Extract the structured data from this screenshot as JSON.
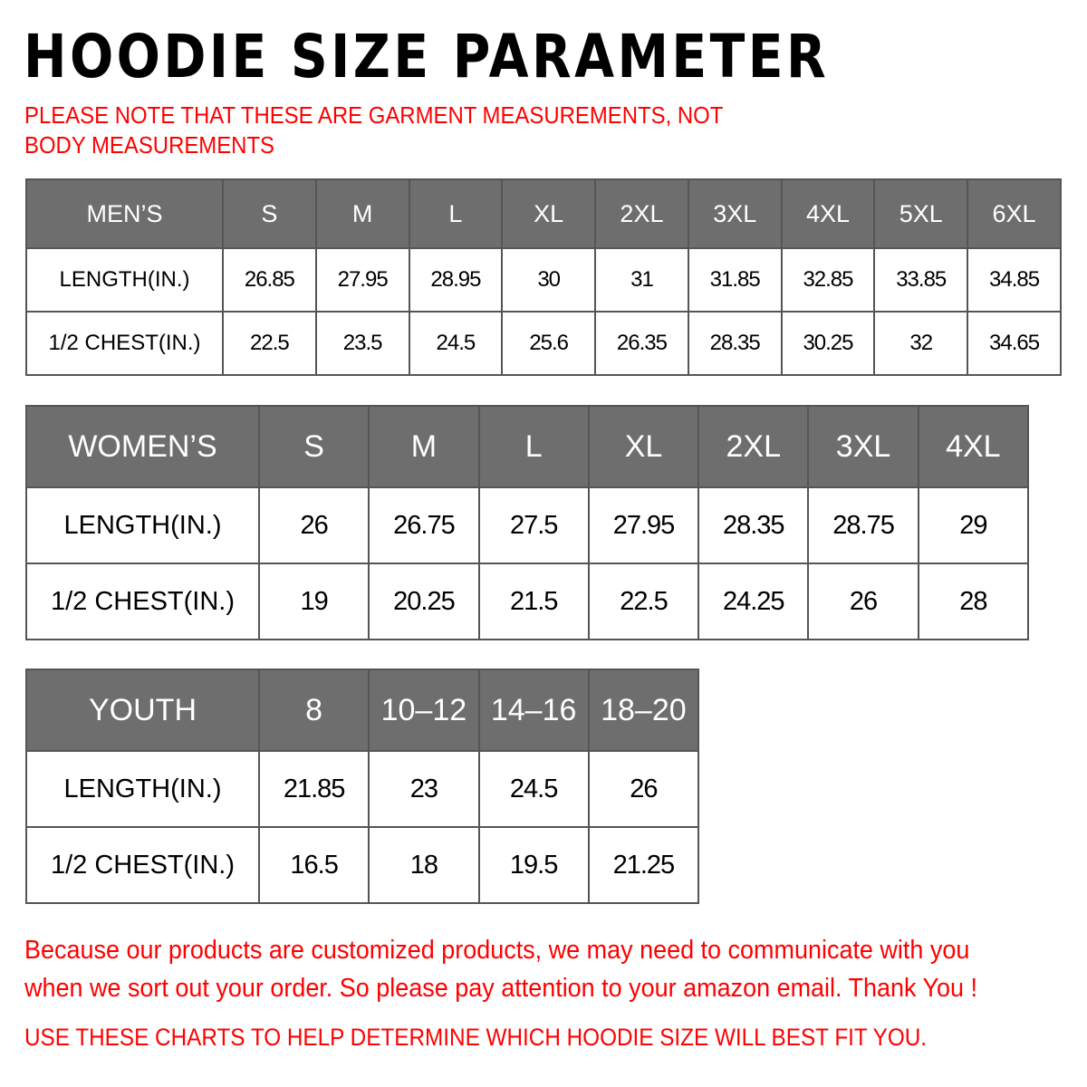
{
  "title": "HOODIE SIZE PARAMETER",
  "note": "PLEASE NOTE THAT THESE ARE GARMENT MEASUREMENTS, NOT BODY MEASUREMENTS",
  "colors": {
    "header_bg": "#6e6e6e",
    "notice_red": "#ff0000"
  },
  "tables": {
    "men": {
      "label": "MEN’S",
      "sizes": [
        "S",
        "M",
        "L",
        "XL",
        "2XL",
        "3XL",
        "4XL",
        "5XL",
        "6XL"
      ],
      "rows": [
        {
          "label": "LENGTH(IN.)",
          "values": [
            "26.85",
            "27.95",
            "28.95",
            "30",
            "31",
            "31.85",
            "32.85",
            "33.85",
            "34.85"
          ]
        },
        {
          "label": "1/2 CHEST(IN.)",
          "values": [
            "22.5",
            "23.5",
            "24.5",
            "25.6",
            "26.35",
            "28.35",
            "30.25",
            "32",
            "34.65"
          ]
        }
      ]
    },
    "women": {
      "label": "WOMEN’S",
      "sizes": [
        "S",
        "M",
        "L",
        "XL",
        "2XL",
        "3XL",
        "4XL"
      ],
      "rows": [
        {
          "label": "LENGTH(IN.)",
          "values": [
            "26",
            "26.75",
            "27.5",
            "27.95",
            "28.35",
            "28.75",
            "29"
          ]
        },
        {
          "label": "1/2 CHEST(IN.)",
          "values": [
            "19",
            "20.25",
            "21.5",
            "22.5",
            "24.25",
            "26",
            "28"
          ]
        }
      ]
    },
    "youth": {
      "label": "YOUTH",
      "sizes": [
        "8",
        "10–12",
        "14–16",
        "18–20"
      ],
      "rows": [
        {
          "label": "LENGTH(IN.)",
          "values": [
            "21.85",
            "23",
            "24.5",
            "26"
          ]
        },
        {
          "label": "1/2 CHEST(IN.)",
          "values": [
            "16.5",
            "18",
            "19.5",
            "21.25"
          ]
        }
      ]
    }
  },
  "footer": {
    "message": "Because our products are customized products, we may need to communicate with you when we sort out your order. So please pay attention to your amazon email. Thank You !",
    "advice": "USE THESE CHARTS TO HELP DETERMINE WHICH HOODIE SIZE WILL BEST FIT YOU."
  }
}
